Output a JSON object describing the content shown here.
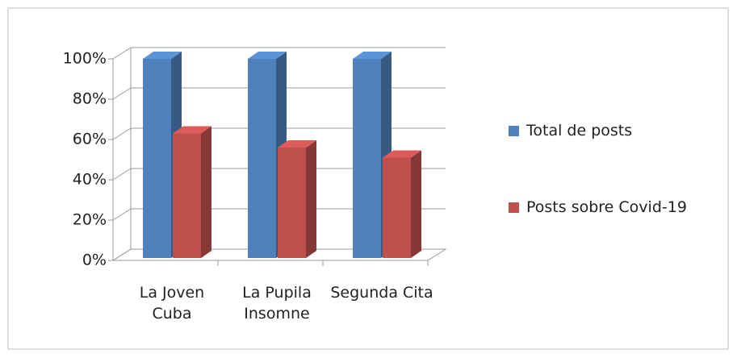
{
  "chart_data": {
    "type": "bar3d",
    "categories": [
      "La Joven Cuba",
      "La Pupila Insomne",
      "Segunda Cita"
    ],
    "series": [
      {
        "name": "Total de posts",
        "color": "#4f81bd",
        "values": [
          100,
          100,
          100
        ]
      },
      {
        "name": "Posts sobre Covid-19",
        "color": "#c0504d",
        "values": [
          63,
          56,
          51
        ]
      }
    ],
    "ylim": [
      0,
      100
    ],
    "yticks": [
      {
        "value": 0,
        "label": "0%"
      },
      {
        "value": 20,
        "label": "20%"
      },
      {
        "value": 40,
        "label": "40%"
      },
      {
        "value": 60,
        "label": "60%"
      },
      {
        "value": 80,
        "label": "80%"
      },
      {
        "value": 100,
        "label": "100%"
      }
    ],
    "grid": true,
    "legend": "right"
  }
}
